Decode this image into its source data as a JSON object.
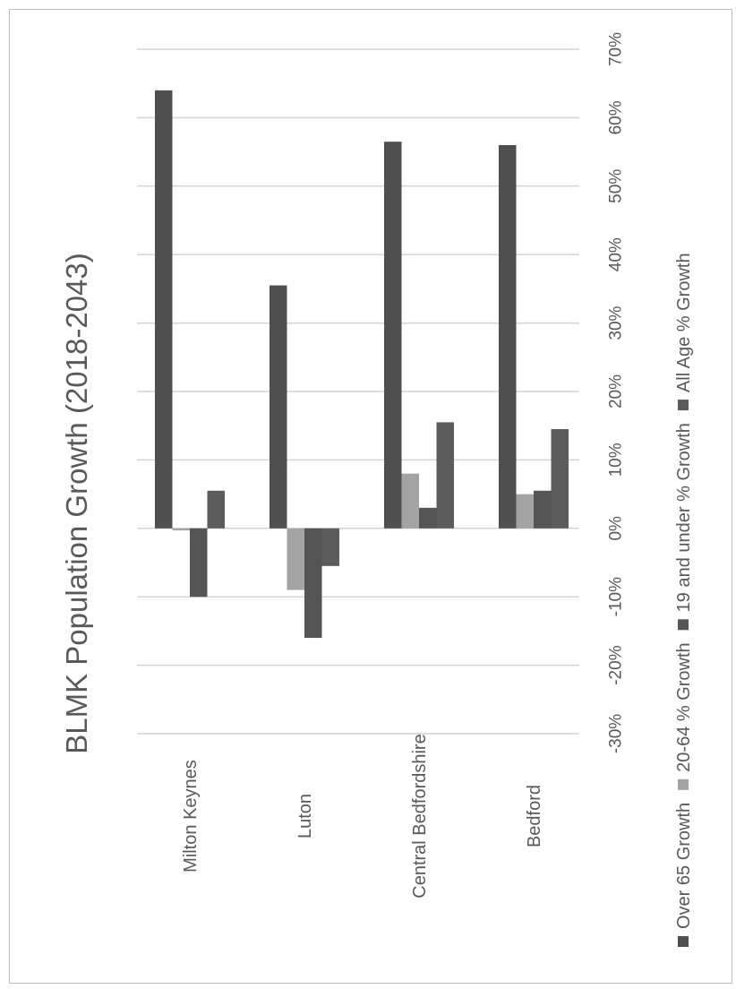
{
  "chart_data": {
    "type": "bar",
    "orientation": "horizontal",
    "title": "BLMK Population Growth (2018-2043)",
    "categories": [
      "Milton Keynes",
      "Luton",
      "Central Bedfordshire",
      "Bedford"
    ],
    "series": [
      {
        "name": "Over 65 Growth",
        "color": "#4f4f4f",
        "values": [
          64,
          35.5,
          56.5,
          56
        ]
      },
      {
        "name": "20-64 % Growth",
        "color": "#a3a3a3",
        "values": [
          -0.3,
          -9,
          8,
          5
        ]
      },
      {
        "name": "19 and under % Growth",
        "color": "#555555",
        "values": [
          -10,
          -16,
          3,
          5.5
        ]
      },
      {
        "name": "All Age % Growth",
        "color": "#5c5c5c",
        "values": [
          5.5,
          -5.5,
          15.5,
          14.5
        ]
      }
    ],
    "value_axis": {
      "min": -30,
      "max": 70,
      "step": 10,
      "tick_labels": [
        "-30%",
        "-20%",
        "-10%",
        "0%",
        "10%",
        "20%",
        "30%",
        "40%",
        "50%",
        "60%",
        "70%"
      ]
    },
    "grid": true,
    "legend_position": "bottom"
  }
}
